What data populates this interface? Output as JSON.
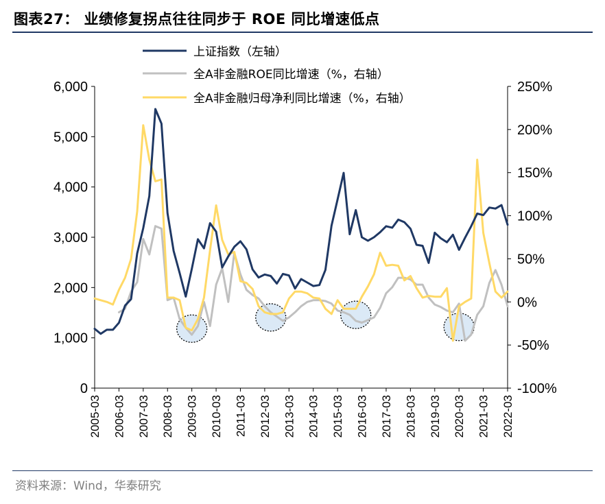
{
  "header": {
    "title": "图表27： 业绩修复拐点往往同步于 ROE 同比增速低点"
  },
  "footer": {
    "source": "资料来源：Wind，华泰研究"
  },
  "colors": {
    "index": "#1f3864",
    "roe": "#c0c0c0",
    "profit": "#ffd966",
    "circle_fill": "#dbe9f6",
    "rule": "#1f3864"
  },
  "chart_data": {
    "type": "line",
    "legend_position": "top",
    "grid": false,
    "x_tick_labels": [
      "2005-03",
      "2006-03",
      "2007-03",
      "2008-03",
      "2009-03",
      "2010-03",
      "2011-03",
      "2012-03",
      "2013-03",
      "2014-03",
      "2015-03",
      "2016-03",
      "2017-03",
      "2018-03",
      "2019-03",
      "2020-03",
      "2021-03",
      "2022-03"
    ],
    "y_left": {
      "ticks": [
        0,
        1000,
        2000,
        3000,
        4000,
        5000,
        6000
      ],
      "tick_labels": [
        "0",
        "1,000",
        "2,000",
        "3,000",
        "4,000",
        "5,000",
        "6,000"
      ],
      "ylim": [
        0,
        6000
      ]
    },
    "y_right": {
      "ticks": [
        -100,
        -50,
        0,
        50,
        100,
        150,
        200,
        250
      ],
      "tick_labels": [
        "-100%",
        "-50%",
        "0%",
        "50%",
        "100%",
        "150%",
        "200%",
        "250%"
      ],
      "ylim": [
        -100,
        250
      ]
    },
    "series": [
      {
        "name": "上证指数（左轴）",
        "axis": "left",
        "color": "#1f3864",
        "x": [
          2005.0,
          2005.25,
          2005.5,
          2005.75,
          2006.0,
          2006.25,
          2006.5,
          2006.75,
          2007.0,
          2007.25,
          2007.5,
          2007.75,
          2008.0,
          2008.25,
          2008.5,
          2008.75,
          2009.0,
          2009.25,
          2009.5,
          2009.75,
          2010.0,
          2010.25,
          2010.5,
          2010.75,
          2011.0,
          2011.25,
          2011.5,
          2011.75,
          2012.0,
          2012.25,
          2012.5,
          2012.75,
          2013.0,
          2013.25,
          2013.5,
          2013.75,
          2014.0,
          2014.25,
          2014.5,
          2014.75,
          2015.0,
          2015.25,
          2015.5,
          2015.75,
          2016.0,
          2016.25,
          2016.5,
          2016.75,
          2017.0,
          2017.25,
          2017.5,
          2017.75,
          2018.0,
          2018.25,
          2018.5,
          2018.75,
          2019.0,
          2019.25,
          2019.5,
          2019.75,
          2020.0,
          2020.25,
          2020.5,
          2020.75,
          2021.0,
          2021.25,
          2021.5,
          2021.75,
          2022.0
        ],
        "y": [
          1180,
          1080,
          1160,
          1160,
          1300,
          1640,
          1770,
          2680,
          3180,
          3820,
          5550,
          5260,
          3480,
          2730,
          2290,
          1820,
          2370,
          2960,
          2780,
          3280,
          3110,
          2400,
          2620,
          2810,
          2920,
          2760,
          2360,
          2200,
          2260,
          2230,
          2080,
          2270,
          2240,
          1980,
          2170,
          2100,
          2030,
          2050,
          2350,
          3230,
          3750,
          4280,
          3060,
          3540,
          3000,
          2930,
          3000,
          3100,
          3220,
          3190,
          3350,
          3300,
          3170,
          2850,
          2830,
          2490,
          3090,
          2980,
          2900,
          3050,
          2750,
          2990,
          3220,
          3470,
          3440,
          3590,
          3570,
          3640,
          3250
        ]
      },
      {
        "name": "全A非金融ROE同比增速（%，右轴）",
        "axis": "right",
        "color": "#c0c0c0",
        "x": [
          2006.0,
          2006.25,
          2006.5,
          2006.75,
          2007.0,
          2007.25,
          2007.5,
          2007.75,
          2008.0,
          2008.25,
          2008.5,
          2008.75,
          2009.0,
          2009.25,
          2009.5,
          2009.75,
          2010.0,
          2010.25,
          2010.5,
          2010.75,
          2011.0,
          2011.25,
          2011.5,
          2011.75,
          2012.0,
          2012.25,
          2012.5,
          2012.75,
          2013.0,
          2013.25,
          2013.5,
          2013.75,
          2014.0,
          2014.25,
          2014.5,
          2014.75,
          2015.0,
          2015.25,
          2015.5,
          2015.75,
          2016.0,
          2016.25,
          2016.5,
          2016.75,
          2017.0,
          2017.25,
          2017.5,
          2017.75,
          2018.0,
          2018.25,
          2018.5,
          2018.75,
          2019.0,
          2019.25,
          2019.5,
          2019.75,
          2020.0,
          2020.25,
          2020.5,
          2020.75,
          2021.0,
          2021.25,
          2021.5,
          2021.75,
          2022.0
        ],
        "y": [
          -12,
          -8,
          12,
          23,
          73,
          55,
          88,
          85,
          2,
          5,
          -20,
          -30,
          -38,
          -28,
          0,
          -28,
          20,
          39,
          0,
          57,
          32,
          14,
          8,
          4,
          -5,
          -12,
          -17,
          -22,
          -18,
          -12,
          -5,
          0,
          2,
          2,
          1,
          -2,
          -10,
          -12,
          -15,
          -22,
          -24,
          -21,
          -18,
          -7,
          10,
          17,
          28,
          28,
          26,
          20,
          20,
          5,
          -3,
          -6,
          -10,
          -12,
          -2,
          -45,
          -38,
          -15,
          -5,
          22,
          37,
          20,
          -5
        ]
      },
      {
        "name": "全A非金融归母净利同比增速（%，右轴）",
        "axis": "right",
        "color": "#ffd966",
        "x": [
          2005.0,
          2005.25,
          2005.5,
          2005.75,
          2006.0,
          2006.25,
          2006.5,
          2006.75,
          2007.0,
          2007.25,
          2007.5,
          2007.75,
          2008.0,
          2008.25,
          2008.5,
          2008.75,
          2009.0,
          2009.25,
          2009.5,
          2009.75,
          2010.0,
          2010.25,
          2010.5,
          2010.75,
          2011.0,
          2011.25,
          2011.5,
          2011.75,
          2012.0,
          2012.25,
          2012.5,
          2012.75,
          2013.0,
          2013.25,
          2013.5,
          2013.75,
          2014.0,
          2014.25,
          2014.5,
          2014.75,
          2015.0,
          2015.25,
          2015.5,
          2015.75,
          2016.0,
          2016.25,
          2016.5,
          2016.75,
          2017.0,
          2017.25,
          2017.5,
          2017.75,
          2018.0,
          2018.25,
          2018.5,
          2018.75,
          2019.0,
          2019.25,
          2019.5,
          2019.75,
          2020.0,
          2020.25,
          2020.5,
          2020.75,
          2021.0,
          2021.25,
          2021.5,
          2021.75,
          2022.0
        ],
        "y": [
          4,
          2,
          0,
          -3,
          14,
          28,
          50,
          105,
          205,
          165,
          140,
          142,
          5,
          5,
          2,
          -30,
          -33,
          -20,
          5,
          60,
          112,
          72,
          55,
          58,
          24,
          22,
          15,
          -5,
          -12,
          -14,
          -14,
          -12,
          4,
          12,
          12,
          10,
          5,
          4,
          -8,
          -14,
          2,
          -8,
          -8,
          -8,
          6,
          18,
          32,
          57,
          42,
          43,
          42,
          25,
          30,
          16,
          5,
          7,
          6,
          6,
          16,
          -45,
          -5,
          0,
          4,
          165,
          80,
          45,
          12,
          5,
          12
        ]
      }
    ],
    "annotations": [
      {
        "type": "circle",
        "label": "",
        "x": 2009.0,
        "y_right": -31
      },
      {
        "type": "circle",
        "label": "",
        "x": 2012.25,
        "y_right": -18
      },
      {
        "type": "circle",
        "label": "",
        "x": 2015.75,
        "y_right": -15
      },
      {
        "type": "circle",
        "label": "",
        "x": 2020.0,
        "y_right": -29
      }
    ]
  }
}
